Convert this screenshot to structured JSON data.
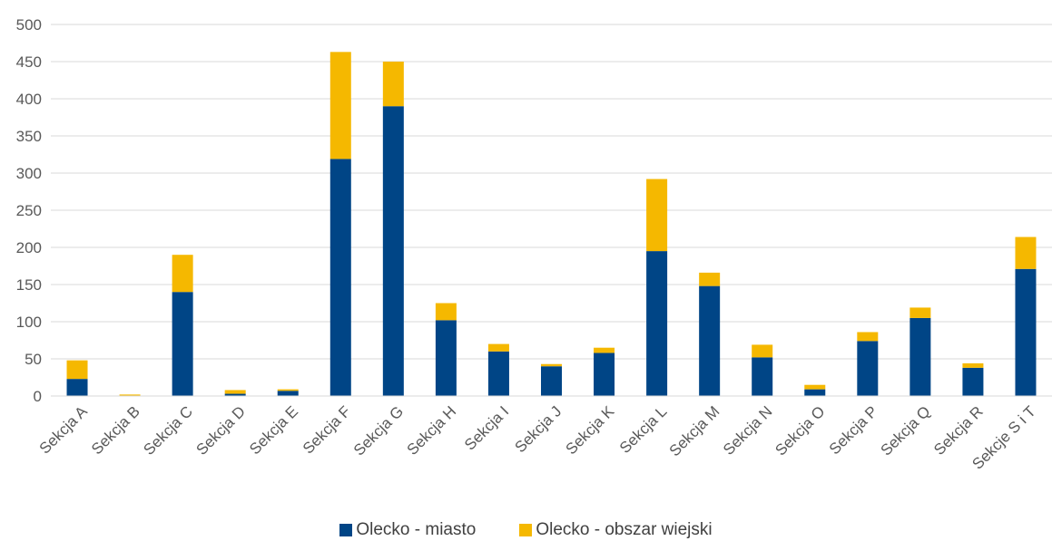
{
  "chart_data": {
    "type": "bar",
    "stacked": true,
    "categories": [
      "Sekcja A",
      "Sekcja B",
      "Sekcja C",
      "Sekcja D",
      "Sekcja E",
      "Sekcja F",
      "Sekcja G",
      "Sekcja H",
      "Sekcja I",
      "Sekcja J",
      "Sekcja K",
      "Sekcja L",
      "Sekcja M",
      "Sekcja N",
      "Sekcja O",
      "Sekcja P",
      "Sekcja Q",
      "Sekcja R",
      "Sekcje S i T"
    ],
    "series": [
      {
        "name": "Olecko - miasto",
        "color": "#004586",
        "values": [
          23,
          0,
          140,
          3,
          7,
          319,
          390,
          102,
          60,
          40,
          58,
          195,
          148,
          52,
          9,
          74,
          105,
          38,
          171
        ]
      },
      {
        "name": "Olecko - obszar wiejski",
        "color": "#F5B800",
        "values": [
          25,
          2,
          50,
          5,
          2,
          144,
          60,
          23,
          10,
          3,
          7,
          97,
          18,
          17,
          6,
          12,
          14,
          6,
          43
        ]
      }
    ],
    "ylim": [
      0,
      500
    ],
    "yticks": [
      0,
      50,
      100,
      150,
      200,
      250,
      300,
      350,
      400,
      450,
      500
    ],
    "grid": true,
    "legend": "bottom",
    "title": "",
    "xlabel": "",
    "ylabel": ""
  }
}
